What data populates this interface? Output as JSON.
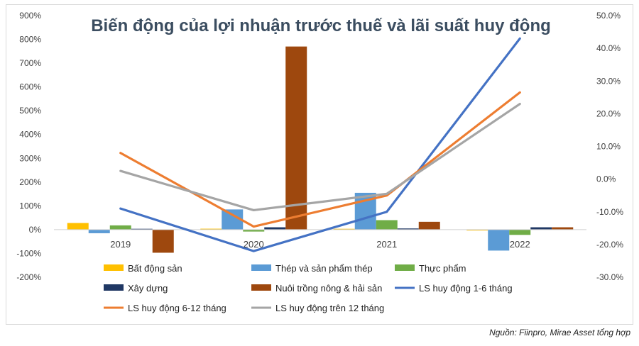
{
  "chart_data": {
    "type": "bar",
    "title": "Biến động của lợi nhuận trước thuế và lãi suất huy động",
    "categories": [
      "2019",
      "2020",
      "2021",
      "2022"
    ],
    "y_left": {
      "min": -200,
      "max": 900,
      "step": 100,
      "tick_labels": [
        "-200%",
        "-100%",
        "0%",
        "100%",
        "200%",
        "300%",
        "400%",
        "500%",
        "600%",
        "700%",
        "800%",
        "900%"
      ]
    },
    "y_right": {
      "min": -30,
      "max": 50,
      "step": 10,
      "tick_labels": [
        "-30.0%",
        "-20.0%",
        "-10.0%",
        "0.0%",
        "10.0%",
        "20.0%",
        "30.0%",
        "40.0%",
        "50.0%"
      ]
    },
    "bar_series": [
      {
        "name": "Bất động sản",
        "color": "#FFC000",
        "values": [
          28,
          4,
          3,
          -2
        ]
      },
      {
        "name": "Thép và sản phẩm thép",
        "color": "#5B9BD5",
        "values": [
          -15,
          85,
          155,
          -88
        ]
      },
      {
        "name": "Thực phẩm",
        "color": "#70AD47",
        "values": [
          18,
          -8,
          40,
          -22
        ]
      },
      {
        "name": "Xây dựng",
        "color": "#203864",
        "values": [
          0,
          10,
          5,
          10
        ]
      },
      {
        "name": "Nuôi trồng nông & hải sản",
        "color": "#9E480E",
        "values": [
          -97,
          770,
          33,
          10
        ]
      }
    ],
    "line_series": [
      {
        "name": "LS huy động 1-6 tháng",
        "color": "#4472C4",
        "axis": "right",
        "values": [
          -9,
          -22,
          -10,
          43
        ]
      },
      {
        "name": "LS huy động 6-12 tháng",
        "color": "#ED7D31",
        "axis": "right",
        "values": [
          8,
          -14.5,
          -5,
          26.5
        ]
      },
      {
        "name": "LS huy động trên 12 tháng",
        "color": "#A5A5A5",
        "axis": "right",
        "values": [
          2.5,
          -9.5,
          -4.5,
          23
        ]
      }
    ],
    "legend": [
      {
        "name": "Bất động sản",
        "kind": "bar",
        "color": "#FFC000"
      },
      {
        "name": "Thép và sản phẩm thép",
        "kind": "bar",
        "color": "#5B9BD5"
      },
      {
        "name": "Thực phẩm",
        "kind": "bar",
        "color": "#70AD47"
      },
      {
        "name": "Xây dựng",
        "kind": "bar",
        "color": "#203864"
      },
      {
        "name": "Nuôi trồng nông & hải sản",
        "kind": "bar",
        "color": "#9E480E"
      },
      {
        "name": "LS huy động 1-6 tháng",
        "kind": "line",
        "color": "#4472C4"
      },
      {
        "name": "LS huy động 6-12 tháng",
        "kind": "line",
        "color": "#ED7D31"
      },
      {
        "name": "LS huy động trên 12 tháng",
        "kind": "line",
        "color": "#A5A5A5"
      }
    ],
    "legend_position": "bottom",
    "grid": false,
    "source": "Nguồn: Fiinpro, Mirae Asset tổng hợp"
  }
}
